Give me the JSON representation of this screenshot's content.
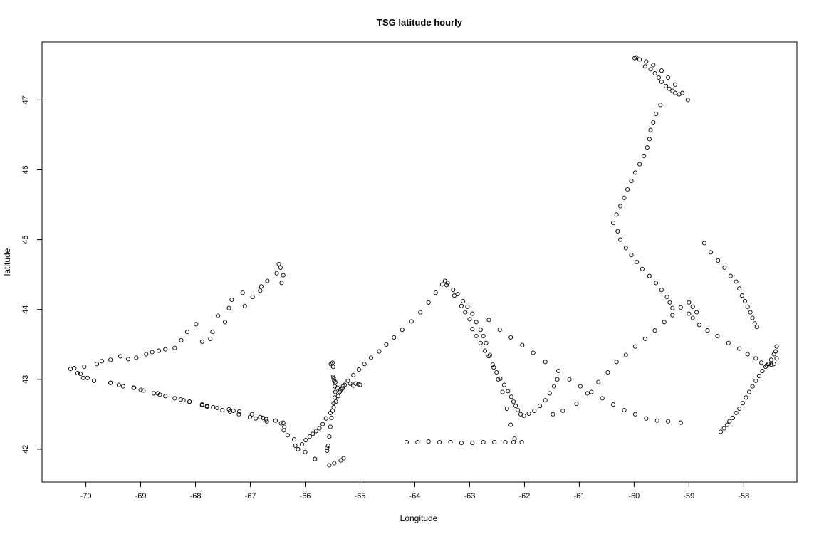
{
  "chart_data": {
    "type": "scatter",
    "title": "TSG latitude hourly",
    "xlabel": "Longitude",
    "ylabel": "latitude",
    "xlim": [
      -70.8,
      -57.03
    ],
    "ylim": [
      41.53,
      47.83
    ],
    "xticks": [
      -70,
      -69,
      -68,
      -67,
      -66,
      -65,
      -64,
      -63,
      -62,
      -61,
      -60,
      -59,
      -58
    ],
    "yticks": [
      42,
      43,
      44,
      45,
      46,
      47
    ],
    "xtick_labels": [
      "-70",
      "-69",
      "-68",
      "-67",
      "-66",
      "-65",
      "-64",
      "-63",
      "-62",
      "-61",
      "-60",
      "-59",
      "-58"
    ],
    "ytick_labels": [
      "42",
      "43",
      "44",
      "45",
      "46",
      "47"
    ],
    "grid": false,
    "marker": "open-circle",
    "x": [
      -70.28,
      -70.21,
      -70.15,
      -70.03,
      -69.97,
      -69.8,
      -69.71,
      -69.55,
      -69.37,
      -69.23,
      -69.08,
      -68.9,
      -68.79,
      -68.67,
      -68.55,
      -68.38,
      -68.26,
      -68.15,
      -67.99,
      -67.88,
      -67.73,
      -67.69,
      -67.59,
      -67.46,
      -67.39,
      -67.34,
      -67.14,
      -67.1,
      -66.96,
      -66.82,
      -66.8,
      -66.69,
      -66.52,
      -66.48,
      -66.45,
      -66.43,
      -66.4,
      -70.1,
      -70.05,
      -69.55,
      -69.32,
      -69.12,
      -68.95,
      -68.76,
      -68.65,
      -68.55,
      -68.38,
      -68.22,
      -68.11,
      -67.88,
      -67.79,
      -67.68,
      -67.51,
      -67.37,
      -67.21,
      -67.01,
      -66.9,
      -66.7,
      -66.44,
      -66.39,
      -66.2,
      -69.85,
      -69.55,
      -69.4,
      -69.13,
      -69.0,
      -68.69,
      -68.27,
      -68.11,
      -67.88,
      -67.79,
      -67.61,
      -67.39,
      -67.31,
      -67.2,
      -66.97,
      -66.82,
      -66.77,
      -66.71,
      -66.54,
      -66.4,
      -66.38,
      -66.32,
      -66.18,
      -66.0,
      -65.82,
      -65.56,
      -65.47,
      -66.13,
      -66.06,
      -65.99,
      -65.92,
      -65.86,
      -65.8,
      -65.74,
      -65.68,
      -65.62,
      -65.54,
      -65.48,
      -65.44,
      -65.4,
      -65.36,
      -65.31,
      -65.22,
      -65.12,
      -65.02,
      -64.92,
      -64.8,
      -64.65,
      -64.52,
      -64.38,
      -64.23,
      -64.06,
      -63.9,
      -63.75,
      -63.62,
      -63.5,
      -63.45,
      -63.4,
      -65.5,
      -65.49,
      -65.48,
      -65.47,
      -65.46,
      -65.45,
      -65.46,
      -65.48,
      -65.5,
      -65.52,
      -65.54,
      -65.56,
      -65.58,
      -65.6,
      -65.6,
      -65.35,
      -65.3,
      -65.53,
      -65.49,
      -65.45,
      -65.41,
      -65.37,
      -65.32,
      -65.28,
      -65.22,
      -65.18,
      -65.12,
      -65.08,
      -65.03,
      -65.0,
      -63.28,
      -63.15,
      -63.08,
      -63.0,
      -62.95,
      -62.88,
      -62.8,
      -62.72,
      -62.65,
      -62.58,
      -62.51,
      -62.44,
      -62.37,
      -62.3,
      -62.24,
      -62.2,
      -62.16,
      -62.12,
      -62.07,
      -62.01,
      -61.92,
      -61.82,
      -61.72,
      -61.62,
      -61.54,
      -61.46,
      -61.4,
      -61.48,
      -61.3,
      -61.05,
      -60.85,
      -60.65,
      -60.48,
      -60.32,
      -60.15,
      -59.98,
      -59.8,
      -59.62,
      -59.45,
      -59.3,
      -59.15,
      -59.0,
      -58.93,
      -58.86,
      -59.0,
      -58.93,
      -58.81,
      -58.66,
      -58.48,
      -58.28,
      -58.08,
      -57.93,
      -57.78,
      -57.68,
      -57.58,
      -57.5,
      -57.45,
      -57.4,
      -62.65,
      -62.45,
      -62.25,
      -62.04,
      -61.84,
      -61.62,
      -61.38,
      -61.18,
      -60.98,
      -60.78,
      -60.58,
      -60.38,
      -60.18,
      -59.98,
      -59.78,
      -59.58,
      -59.38,
      -59.15,
      -63.42,
      -63.3,
      -63.22,
      -63.12,
      -63.04,
      -62.95,
      -62.88,
      -62.8,
      -62.75,
      -62.7,
      -62.63,
      -62.56,
      -62.48,
      -62.4,
      -62.32,
      -62.25,
      -62.18,
      -64.15,
      -63.95,
      -63.75,
      -63.55,
      -63.35,
      -63.15,
      -62.95,
      -62.75,
      -62.55,
      -62.35,
      -62.2,
      -62.05,
      -57.4,
      -57.42,
      -57.45,
      -57.5,
      -57.55,
      -57.6,
      -57.66,
      -57.72,
      -57.78,
      -57.84,
      -57.9,
      -57.96,
      -58.02,
      -58.08,
      -58.14,
      -58.2,
      -58.26,
      -58.3,
      -58.36,
      -58.42,
      -58.72,
      -58.6,
      -58.47,
      -58.35,
      -58.24,
      -58.14,
      -58.08,
      -58.03,
      -57.98,
      -57.93,
      -57.88,
      -57.84,
      -57.8,
      -57.76,
      -59.02,
      -59.12,
      -59.25,
      -59.38,
      -59.5,
      -59.65,
      -59.78,
      -59.9,
      -59.96,
      -59.99,
      -59.8,
      -59.7,
      -59.62,
      -59.55,
      -59.5,
      -59.42,
      -59.36,
      -59.3,
      -59.25,
      -59.18,
      -59.52,
      -59.6,
      -59.65,
      -59.7,
      -59.72,
      -59.76,
      -59.82,
      -59.9,
      -59.98,
      -60.05,
      -60.12,
      -60.18,
      -60.25,
      -60.32,
      -60.38,
      -60.3,
      -60.25,
      -60.15,
      -60.05,
      -59.95,
      -59.85,
      -59.72,
      -59.6,
      -59.5,
      -59.4,
      -59.35,
      -59.3
    ],
    "y": [
      43.15,
      43.16,
      43.09,
      43.18,
      43.02,
      43.22,
      43.26,
      43.28,
      43.33,
      43.29,
      43.31,
      43.36,
      43.39,
      43.41,
      43.43,
      43.45,
      43.56,
      43.68,
      43.79,
      43.54,
      43.58,
      43.68,
      43.91,
      43.82,
      44.02,
      44.14,
      44.24,
      44.05,
      44.18,
      44.27,
      44.33,
      44.41,
      44.52,
      44.65,
      44.6,
      44.38,
      44.49,
      43.08,
      43.02,
      42.95,
      42.9,
      42.88,
      42.84,
      42.8,
      42.78,
      42.76,
      42.73,
      42.7,
      42.68,
      42.64,
      42.62,
      42.6,
      42.56,
      42.54,
      42.5,
      42.46,
      42.44,
      42.4,
      42.37,
      42.27,
      42.14,
      42.98,
      42.95,
      42.92,
      42.88,
      42.85,
      42.8,
      42.71,
      42.68,
      42.63,
      42.61,
      42.59,
      42.57,
      42.55,
      42.54,
      42.5,
      42.46,
      42.45,
      42.43,
      42.41,
      42.38,
      42.32,
      42.2,
      42.05,
      41.96,
      41.86,
      41.77,
      41.8,
      42.0,
      42.07,
      42.13,
      42.18,
      42.22,
      42.26,
      42.3,
      42.36,
      42.44,
      42.52,
      42.6,
      42.68,
      42.76,
      42.84,
      42.9,
      42.98,
      43.06,
      43.14,
      43.22,
      43.31,
      43.4,
      43.5,
      43.6,
      43.71,
      43.83,
      43.96,
      44.1,
      44.24,
      44.36,
      44.41,
      44.38,
      43.24,
      43.18,
      43.02,
      42.98,
      42.9,
      42.82,
      42.74,
      42.66,
      42.55,
      42.45,
      42.32,
      42.18,
      42.05,
      41.98,
      42.02,
      41.84,
      41.87,
      43.22,
      43.04,
      42.96,
      42.88,
      42.82,
      42.87,
      42.92,
      42.98,
      42.94,
      42.91,
      42.94,
      42.93,
      42.92,
      44.2,
      44.05,
      43.96,
      43.86,
      43.72,
      43.62,
      43.52,
      43.41,
      43.33,
      43.21,
      43.1,
      43.01,
      42.92,
      42.83,
      42.75,
      42.68,
      42.62,
      42.56,
      42.5,
      42.48,
      42.51,
      42.55,
      42.62,
      42.7,
      42.8,
      42.9,
      43.0,
      42.5,
      42.55,
      42.65,
      42.8,
      42.96,
      43.1,
      43.25,
      43.35,
      43.47,
      43.58,
      43.7,
      43.82,
      43.92,
      44.03,
      44.1,
      44.04,
      43.96,
      43.94,
      43.88,
      43.78,
      43.7,
      43.62,
      43.52,
      43.44,
      43.36,
      43.3,
      43.24,
      43.2,
      43.21,
      43.22,
      43.3,
      43.85,
      43.71,
      43.6,
      43.49,
      43.38,
      43.25,
      43.12,
      43.0,
      42.9,
      42.82,
      42.73,
      42.64,
      42.56,
      42.5,
      42.44,
      42.41,
      42.4,
      42.38,
      44.35,
      44.28,
      44.22,
      44.12,
      44.04,
      43.94,
      43.82,
      43.71,
      43.62,
      43.52,
      43.35,
      43.17,
      43.0,
      42.82,
      42.58,
      42.35,
      42.15,
      42.1,
      42.1,
      42.11,
      42.1,
      42.1,
      42.09,
      42.09,
      42.1,
      42.1,
      42.1,
      42.1,
      42.1,
      43.47,
      43.4,
      43.36,
      43.28,
      43.22,
      43.18,
      43.12,
      43.05,
      42.98,
      42.9,
      42.82,
      42.74,
      42.66,
      42.58,
      42.52,
      42.45,
      42.4,
      42.35,
      42.3,
      42.25,
      44.95,
      44.82,
      44.7,
      44.6,
      44.48,
      44.4,
      44.3,
      44.2,
      44.12,
      44.04,
      43.96,
      43.88,
      43.8,
      43.75,
      47.0,
      47.1,
      47.22,
      47.32,
      47.42,
      47.5,
      47.55,
      47.58,
      47.61,
      47.6,
      47.48,
      47.44,
      47.38,
      47.32,
      47.26,
      47.2,
      47.16,
      47.13,
      47.1,
      47.08,
      46.93,
      46.8,
      46.68,
      46.57,
      46.44,
      46.32,
      46.2,
      46.08,
      45.96,
      45.84,
      45.72,
      45.6,
      45.48,
      45.36,
      45.24,
      45.12,
      45.0,
      44.88,
      44.78,
      44.68,
      44.58,
      44.48,
      44.38,
      44.28,
      44.18,
      44.1,
      44.02
    ]
  }
}
